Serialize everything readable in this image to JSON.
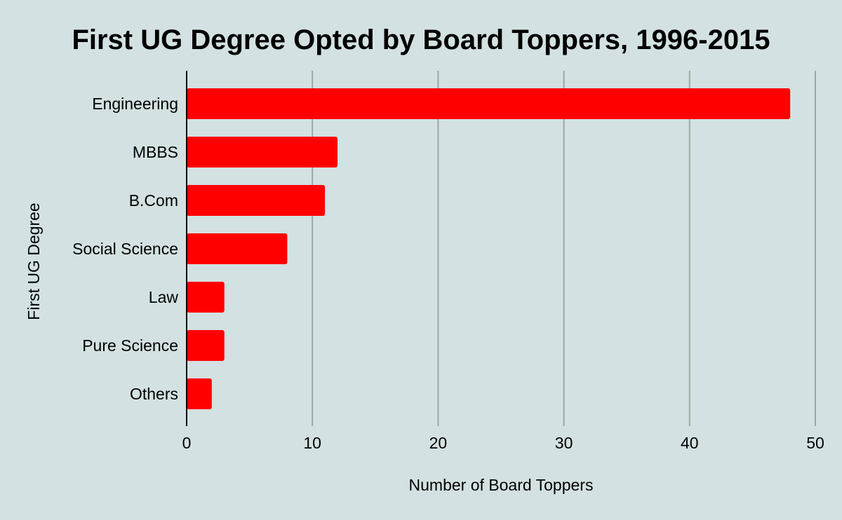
{
  "colors": {
    "background": "#d3e1e2",
    "bar": "#ff0000",
    "gridline": "#9aa8a4",
    "axis_line": "#000000",
    "text": "#000000"
  },
  "chart_data": {
    "type": "bar",
    "orientation": "horizontal",
    "title": "First UG Degree Opted by Board Toppers, 1996-2015",
    "xlabel": "Number of Board Toppers",
    "ylabel": "First UG Degree",
    "categories": [
      "Engineering",
      "MBBS",
      "B.Com",
      "Social Science",
      "Law",
      "Pure Science",
      "Others"
    ],
    "values": [
      48,
      12,
      11,
      8,
      3,
      3,
      2
    ],
    "xlim": [
      0,
      50
    ],
    "xticks": [
      "0",
      "10",
      "20",
      "30",
      "40",
      "50"
    ],
    "grid": true,
    "legend": "none"
  }
}
